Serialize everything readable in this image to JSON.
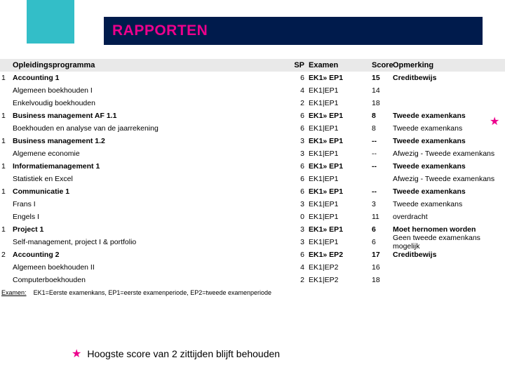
{
  "accent_pink": "#ec008c",
  "accent_teal": "#33bec8",
  "dark_blue": "#001b4c",
  "hdr_bg": "#e9e9e9",
  "title": "RAPPORTEN",
  "columns": {
    "program": "Opleidingsprogramma",
    "sp": "SP",
    "exam": "Examen",
    "score": "Score",
    "note": "Opmerking"
  },
  "rows": [
    {
      "idx": "1",
      "course": "Accounting 1",
      "sp": "6",
      "exam": "EK1» EP1",
      "score": "15",
      "note": "Creditbewijs",
      "bold": true,
      "star": false
    },
    {
      "idx": "",
      "course": "Algemeen boekhouden I",
      "sp": "4",
      "exam": "EK1|EP1",
      "score": "14",
      "note": "",
      "bold": false,
      "star": false
    },
    {
      "idx": "",
      "course": "Enkelvoudig boekhouden",
      "sp": "2",
      "exam": "EK1|EP1",
      "score": "18",
      "note": "",
      "bold": false,
      "star": false
    },
    {
      "idx": "1",
      "course": "Business management AF 1.1",
      "sp": "6",
      "exam": "EK1» EP1",
      "score": "8",
      "note": "Tweede examenkans",
      "bold": true,
      "star": false
    },
    {
      "idx": "",
      "course": "Boekhouden en analyse van de jaarrekening",
      "sp": "6",
      "exam": "EK1|EP1",
      "score": "8",
      "note": "Tweede examenkans",
      "bold": false,
      "star": true
    },
    {
      "idx": "1",
      "course": "Business management 1.2",
      "sp": "3",
      "exam": "EK1» EP1",
      "score": "--",
      "note": "Tweede examenkans",
      "bold": true,
      "star": false
    },
    {
      "idx": "",
      "course": "Algemene economie",
      "sp": "3",
      "exam": "EK1|EP1",
      "score": "--",
      "note": "Afwezig - Tweede examenkans",
      "bold": false,
      "star": false
    },
    {
      "idx": "1",
      "course": "Informatiemanagement 1",
      "sp": "6",
      "exam": "EK1» EP1",
      "score": "--",
      "note": "Tweede examenkans",
      "bold": true,
      "star": false
    },
    {
      "idx": "",
      "course": "Statistiek en Excel",
      "sp": "6",
      "exam": "EK1|EP1",
      "score": "",
      "note": "Afwezig - Tweede examenkans",
      "bold": false,
      "star": false
    },
    {
      "idx": "1",
      "course": "Communicatie 1",
      "sp": "6",
      "exam": "EK1» EP1",
      "score": "--",
      "note": "Tweede examenkans",
      "bold": true,
      "star": false
    },
    {
      "idx": "",
      "course": "Frans I",
      "sp": "3",
      "exam": "EK1|EP1",
      "score": "3",
      "note": "Tweede examenkans",
      "bold": false,
      "star": false
    },
    {
      "idx": "",
      "course": "Engels I",
      "sp": "0",
      "exam": "EK1|EP1",
      "score": "11",
      "note": "overdracht",
      "bold": false,
      "star": false
    },
    {
      "idx": "1",
      "course": "Project 1",
      "sp": "3",
      "exam": "EK1» EP1",
      "score": "6",
      "note": "Moet hernomen worden",
      "bold": true,
      "star": false
    },
    {
      "idx": "",
      "course": "Self-management, project I & portfolio",
      "sp": "3",
      "exam": "EK1|EP1",
      "score": "6",
      "note": "Geen tweede examenkans mogelijk",
      "bold": false,
      "star": false
    },
    {
      "idx": "2",
      "course": "Accounting 2",
      "sp": "6",
      "exam": "EK1» EP2",
      "score": "17",
      "note": "Creditbewijs",
      "bold": true,
      "star": false
    },
    {
      "idx": "",
      "course": "Algemeen boekhouden II",
      "sp": "4",
      "exam": "EK1|EP2",
      "score": "16",
      "note": "",
      "bold": false,
      "star": false
    },
    {
      "idx": "",
      "course": "Computerboekhouden",
      "sp": "2",
      "exam": "EK1|EP2",
      "score": "18",
      "note": "",
      "bold": false,
      "star": false
    }
  ],
  "legend": {
    "label": "Examen:",
    "text": "EK1=Eerste examenkans, EP1=eerste examenperiode, EP2=tweede examenperiode"
  },
  "footer": "Hoogste score van 2 zittijden blijft behouden",
  "star_glyph": "★"
}
